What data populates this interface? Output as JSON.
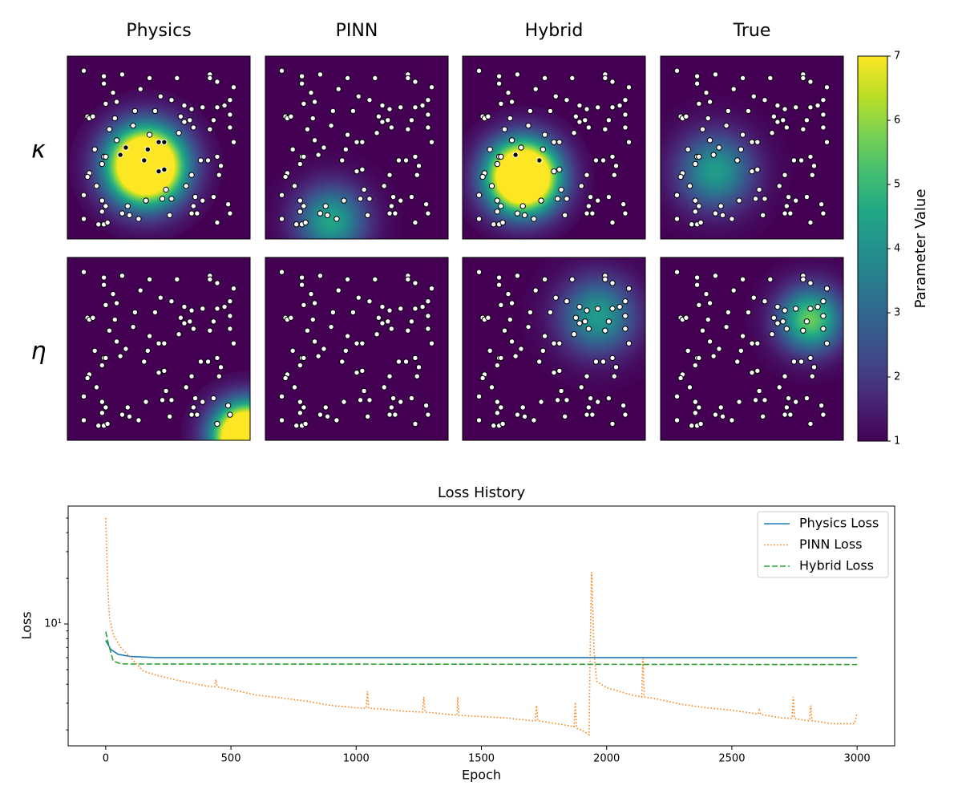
{
  "chart_data": [
    {
      "type": "heatmap",
      "columns": [
        "Physics",
        "PINN",
        "Hybrid",
        "True"
      ],
      "rows": [
        "κ",
        "η"
      ],
      "xlim": [
        0,
        100
      ],
      "ylim": [
        0,
        100
      ],
      "background": 1,
      "colorbar_label": "Parameter Value",
      "clim": [
        1,
        7
      ],
      "cticks": [
        1,
        2,
        3,
        4,
        5,
        6,
        7
      ],
      "fields": [
        [
          [
            {
              "x": 43,
              "y": 40,
              "peak": 12,
              "sigma": 14
            }
          ],
          [
            {
              "x": 36,
              "y": 10,
              "peak": 4.5,
              "sigma": 13
            }
          ],
          [
            {
              "x": 33,
              "y": 34,
              "peak": 12,
              "sigma": 13
            }
          ],
          [
            {
              "x": 30,
              "y": 37,
              "peak": 4.3,
              "sigma": 14
            }
          ]
        ],
        [
          [
            {
              "x": 98,
              "y": 2,
              "peak": 12,
              "sigma": 12
            }
          ],
          [],
          [
            {
              "x": 74,
              "y": 68,
              "peak": 4.3,
              "sigma": 14
            }
          ],
          [
            {
              "x": 82,
              "y": 66,
              "peak": 5.6,
              "sigma": 12
            }
          ]
        ]
      ],
      "sensors": {
        "x": [
          9,
          20,
          30,
          20,
          45,
          60,
          78,
          78,
          82,
          91,
          25,
          40,
          51,
          57,
          21,
          27,
          64,
          68,
          74,
          82,
          89,
          86,
          37,
          48,
          11,
          12,
          14,
          62,
          64,
          67,
          80,
          89,
          26,
          69,
          89,
          36,
          45,
          23,
          61,
          78,
          91,
          15,
          27,
          29,
          32,
          44,
          50,
          53,
          82,
          77,
          73,
          20,
          19,
          21,
          42,
          50,
          53,
          84,
          83,
          12,
          11,
          16,
          9,
          68,
          65,
          54,
          52,
          57,
          70,
          69,
          74,
          71,
          80,
          88,
          19,
          33,
          34,
          21,
          19,
          43,
          30,
          39,
          9,
          17,
          20,
          22,
          56,
          68,
          89,
          82
        ],
        "y": [
          92,
          89,
          90,
          85,
          88,
          88,
          90,
          88,
          86,
          83,
          80,
          82,
          78,
          76,
          74,
          75,
          73,
          71,
          72,
          72,
          76,
          73,
          70,
          70,
          67,
          66,
          67,
          67,
          64,
          65,
          65,
          68,
          66,
          61,
          61,
          62,
          57,
          60,
          58,
          60,
          53,
          49,
          54,
          46,
          50,
          49,
          53,
          53,
          45,
          43,
          43,
          45,
          41,
          45,
          43,
          37,
          38,
          40,
          35,
          36,
          34,
          29,
          24,
          35,
          29,
          27,
          22,
          22,
          23,
          18,
          21,
          14,
          23,
          19,
          21,
          18,
          13,
          18,
          15,
          21,
          14,
          11,
          11,
          8,
          8,
          9,
          13,
          14,
          14,
          9
        ]
      }
    },
    {
      "type": "line",
      "title": "Loss History",
      "xlabel": "Epoch",
      "ylabel": "Loss",
      "xlim": [
        -150,
        3150
      ],
      "xticks": [
        0,
        500,
        1000,
        1500,
        2000,
        2500,
        3000
      ],
      "ylim": [
        1.57,
        60
      ],
      "yscale": "log",
      "yticks": [
        {
          "value": 10,
          "label": "10¹"
        }
      ],
      "yminorticks": [
        2,
        3,
        4,
        5,
        6,
        7,
        8,
        9,
        20,
        30,
        40,
        50
      ],
      "legend": "upper right",
      "series": [
        {
          "name": "Physics Loss",
          "color": "#1f77b4",
          "linestyle": "solid",
          "x": [
            0,
            20,
            50,
            100,
            200,
            3000
          ],
          "values": [
            7.8,
            6.8,
            6.3,
            6.1,
            6.0,
            6.0
          ]
        },
        {
          "name": "PINN Loss",
          "color": "#ff7f0e",
          "linestyle": "dotted",
          "x": [
            0,
            3,
            8,
            15,
            30,
            60,
            100,
            150,
            200,
            300,
            400,
            435,
            440,
            445,
            500,
            600,
            700,
            800,
            900,
            1000,
            1040,
            1045,
            1050,
            1100,
            1200,
            1265,
            1270,
            1275,
            1300,
            1400,
            1403,
            1405,
            1410,
            1500,
            1600,
            1700,
            1715,
            1720,
            1725,
            1800,
            1870,
            1875,
            1880,
            1900,
            1930,
            1935,
            1940,
            1945,
            1950,
            1960,
            2000,
            2100,
            2140,
            2145,
            2150,
            2200,
            2300,
            2400,
            2500,
            2600,
            2605,
            2610,
            2615,
            2700,
            2740,
            2745,
            2750,
            2800,
            2810,
            2815,
            2820,
            2900,
            2990,
            3000
          ],
          "values": [
            50,
            35,
            18,
            11,
            8.5,
            7.0,
            6.0,
            4.9,
            4.6,
            4.2,
            3.9,
            3.85,
            4.3,
            3.85,
            3.7,
            3.4,
            3.25,
            3.1,
            2.9,
            2.8,
            2.78,
            3.6,
            2.78,
            2.75,
            2.65,
            2.62,
            3.3,
            2.62,
            2.6,
            2.5,
            2.5,
            3.3,
            2.5,
            2.45,
            2.4,
            2.3,
            2.3,
            2.9,
            2.3,
            2.2,
            2.1,
            3.05,
            2.05,
            2.0,
            1.86,
            8,
            22,
            12,
            6.5,
            4.2,
            3.8,
            3.4,
            3.3,
            5.9,
            3.3,
            3.2,
            2.95,
            2.8,
            2.7,
            2.55,
            2.55,
            2.7,
            2.53,
            2.4,
            2.38,
            3.3,
            2.38,
            2.3,
            2.3,
            2.9,
            2.3,
            2.2,
            2.2,
            2.6
          ]
        },
        {
          "name": "Hybrid Loss",
          "color": "#2ca02c",
          "linestyle": "dashed",
          "x": [
            0,
            10,
            30,
            60,
            3000
          ],
          "values": [
            8.9,
            7.5,
            5.7,
            5.45,
            5.4
          ]
        }
      ]
    }
  ]
}
